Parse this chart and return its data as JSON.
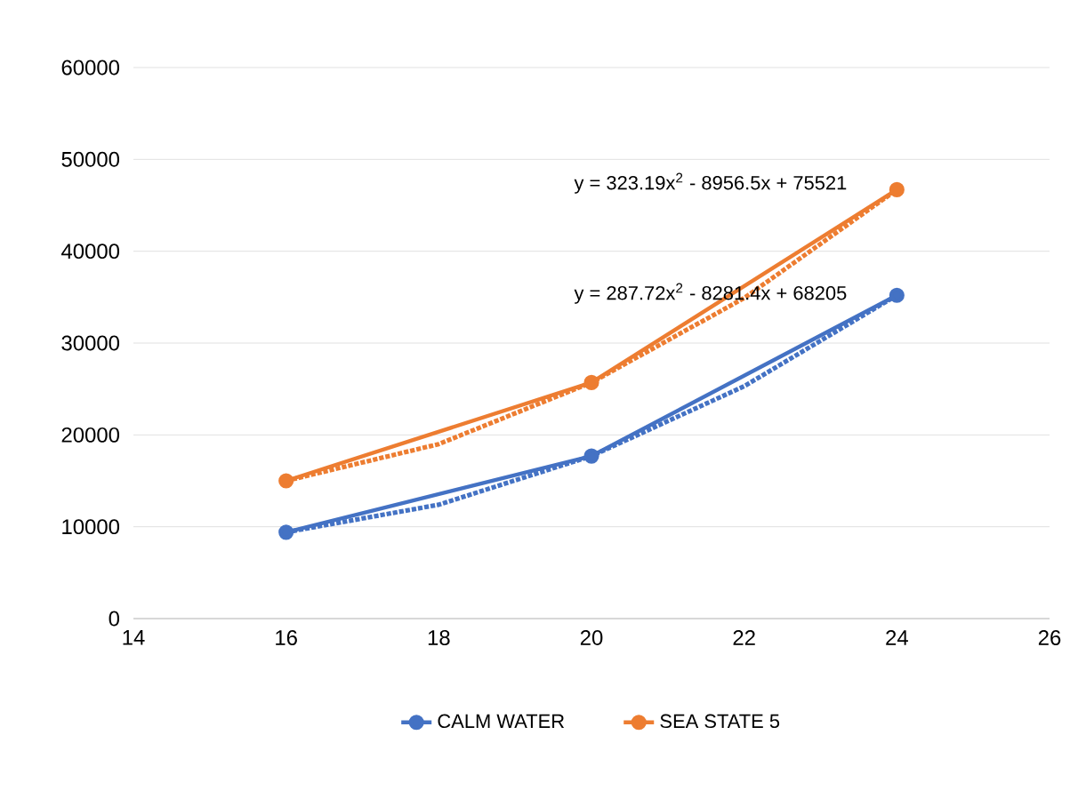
{
  "chart_data": {
    "type": "line",
    "xlim": [
      14,
      26
    ],
    "xticks": [
      14,
      16,
      18,
      20,
      22,
      24,
      26
    ],
    "ylim": [
      0,
      60000
    ],
    "yticks": [
      0,
      10000,
      20000,
      30000,
      40000,
      50000,
      60000
    ],
    "grid": "y",
    "legend": "bottom",
    "marker": "circle",
    "line_style": "solid",
    "series": [
      {
        "name": "CALM WATER",
        "color": "#4472c4",
        "x": [
          16,
          20,
          24
        ],
        "values": [
          9400,
          17700,
          35200
        ]
      },
      {
        "name": "SEA STATE 5",
        "color": "#ed7d31",
        "x": [
          16,
          20,
          24
        ],
        "values": [
          15000,
          25700,
          46700
        ]
      },
      {
        "type": "line",
        "color": "#4472c4",
        "line_style": "dotted",
        "marker": "none",
        "x": [
          16,
          18,
          20,
          22,
          24
        ],
        "values": [
          9400,
          12400,
          17700,
          25300,
          35200
        ]
      },
      {
        "type": "line",
        "color": "#ed7d31",
        "line_style": "dotted",
        "marker": "none",
        "x": [
          16,
          18,
          20,
          22,
          24
        ],
        "values": [
          15000,
          19000,
          25700,
          34900,
          46700
        ]
      }
    ],
    "annotations": [
      "y = 323.19x$^{2}$ - 8956.5x + 75521",
      "y = 287.72x$^{2}$ - 8281.4x + 68205"
    ]
  }
}
